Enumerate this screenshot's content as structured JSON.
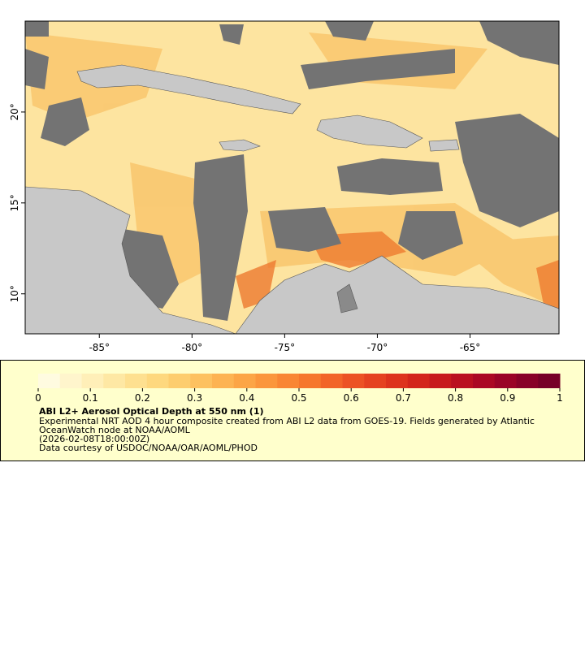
{
  "map": {
    "xlim": [
      -89,
      -60.2
    ],
    "ylim": [
      7.8,
      25
    ],
    "xticks": [
      {
        "value": -85,
        "label": "-85°"
      },
      {
        "value": -80,
        "label": "-80°"
      },
      {
        "value": -75,
        "label": "-75°"
      },
      {
        "value": -70,
        "label": "-70°"
      },
      {
        "value": -65,
        "label": "-65°"
      }
    ],
    "yticks": [
      {
        "value": 10,
        "label": "10°"
      },
      {
        "value": 15,
        "label": "15°"
      },
      {
        "value": 20,
        "label": "20°"
      }
    ]
  },
  "colorbar": {
    "range": [
      0,
      1
    ],
    "ticks": [
      0,
      0.1,
      0.2,
      0.3,
      0.4,
      0.5,
      0.6,
      0.7,
      0.8,
      0.9,
      1
    ],
    "colors": [
      "#fffbe0",
      "#fff5cc",
      "#ffefb8",
      "#fee8a4",
      "#fee090",
      "#fed87e",
      "#fdcd6e",
      "#fdc160",
      "#fdb352",
      "#fca546",
      "#fb963c",
      "#f98634",
      "#f6762d",
      "#f26428",
      "#ec5224",
      "#e54220",
      "#dd331d",
      "#d3251b",
      "#c71a1d",
      "#ba1020",
      "#ab0824",
      "#9a0327",
      "#880128",
      "#770027"
    ]
  },
  "legend": {
    "title": "ABI L2+ Aerosol Optical Depth at 550 nm (1)",
    "lines": [
      "Experimental NRT AOD 4 hour composite created from ABI L2 data from GOES-19. Fields generated by Atlantic",
      "OceanWatch node at NOAA/AOML",
      "(2026-02-08T18:00:00Z)",
      "Data courtesy of USDOC/NOAA/OAR/AOML/PHOD"
    ]
  }
}
